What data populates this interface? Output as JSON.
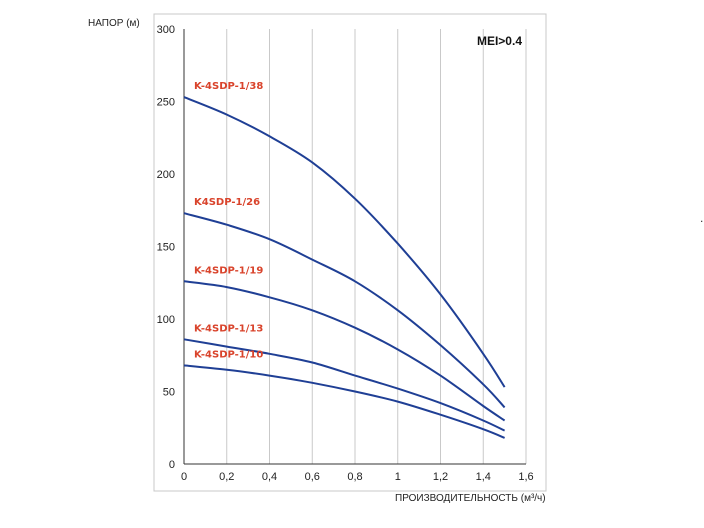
{
  "chart_data": {
    "type": "line",
    "title": "",
    "ylabel": "НАПОР (м)",
    "xlabel": "ПРОИЗВОДИТЕЛЬНОСТЬ (м³/ч)",
    "badge": "MEI>0.4",
    "xlim": [
      0,
      1.6
    ],
    "ylim": [
      0,
      300
    ],
    "x_ticks": [
      0,
      0.2,
      0.4,
      0.6,
      0.8,
      1.0,
      1.2,
      1.4,
      1.6
    ],
    "x_tick_labels": [
      "0",
      "0,2",
      "0,4",
      "0,6",
      "0,8",
      "1",
      "1,2",
      "1,4",
      "1,6"
    ],
    "y_ticks": [
      0,
      50,
      100,
      150,
      200,
      250,
      300
    ],
    "y_tick_labels": [
      "0",
      "50",
      "100",
      "150",
      "200",
      "250",
      "300"
    ],
    "grid": "vertical",
    "line_color": "#1f3f95",
    "label_color": "#d9432b",
    "series": [
      {
        "name": "K-4SDP-1/38",
        "x": [
          0,
          0.2,
          0.4,
          0.6,
          0.8,
          1.0,
          1.2,
          1.4,
          1.5
        ],
        "values": [
          253,
          241,
          226,
          208,
          183,
          152,
          117,
          76,
          53
        ]
      },
      {
        "name": "K4SDP-1/26",
        "x": [
          0,
          0.2,
          0.4,
          0.6,
          0.8,
          1.0,
          1.2,
          1.4,
          1.5
        ],
        "values": [
          173,
          165,
          155,
          141,
          126,
          106,
          82,
          55,
          39
        ]
      },
      {
        "name": "K-4SDP-1/19",
        "x": [
          0,
          0.2,
          0.4,
          0.6,
          0.8,
          1.0,
          1.2,
          1.4,
          1.5
        ],
        "values": [
          126,
          122,
          115,
          106,
          94,
          79,
          61,
          40,
          30
        ]
      },
      {
        "name": "K-4SDP-1/13",
        "x": [
          0,
          0.2,
          0.4,
          0.6,
          0.8,
          1.0,
          1.2,
          1.4,
          1.5
        ],
        "values": [
          86,
          81,
          76,
          70,
          61,
          52,
          42,
          30,
          23
        ]
      },
      {
        "name": "K-4SDP-1/10",
        "x": [
          0,
          0.2,
          0.4,
          0.6,
          0.8,
          1.0,
          1.2,
          1.4,
          1.5
        ],
        "values": [
          68,
          65,
          61,
          56,
          50,
          43,
          34,
          24,
          18
        ]
      }
    ]
  }
}
